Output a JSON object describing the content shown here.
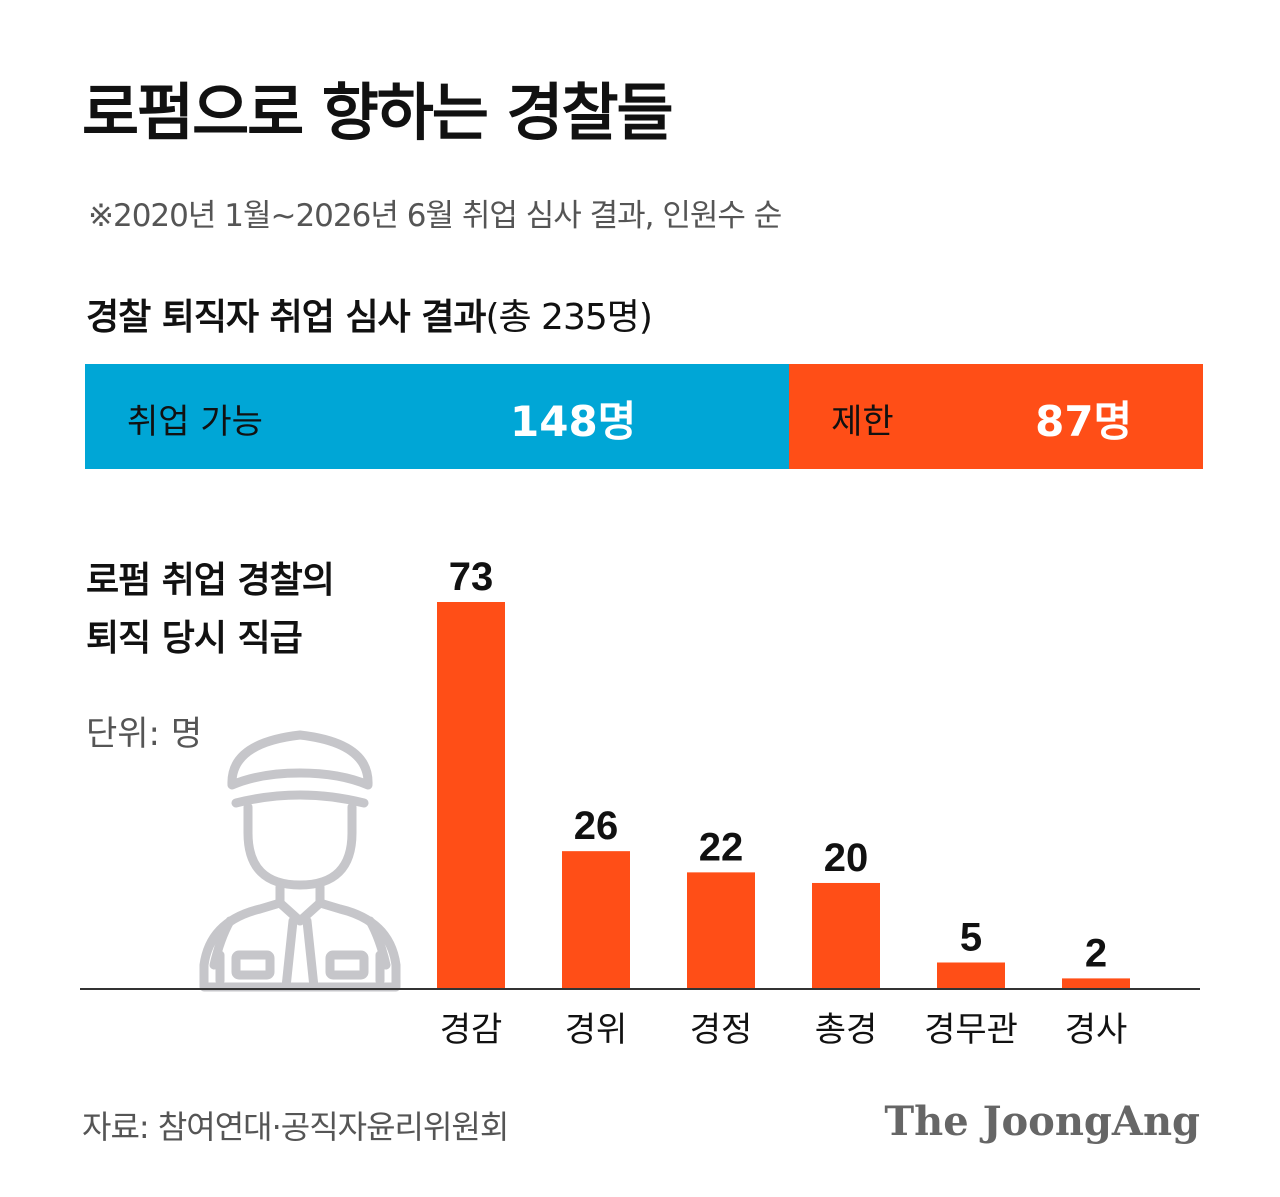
{
  "title": "로펌으로 향하는 경찰들",
  "note": "※2020년 1월~2026년 6월 취업 심사 결과, 인원수 순",
  "review": {
    "heading_bold": "경찰 퇴직자 취업 심사 결과",
    "heading_total": "(총 235명)",
    "segments": [
      {
        "label": "취업 가능",
        "value": 148,
        "value_text": "148명",
        "color": "#00A6D6"
      },
      {
        "label": "제한",
        "value": 87,
        "value_text": "87명",
        "color": "#FF4E17"
      }
    ]
  },
  "rank_section": {
    "heading_line1": "로펌 취업 경찰의",
    "heading_line2": "퇴직 당시 직급",
    "unit": "단위: 명"
  },
  "officer_icon": "police-officer-icon",
  "chart_data": {
    "type": "bar",
    "categories": [
      "경감",
      "경위",
      "경정",
      "총경",
      "경무관",
      "경사"
    ],
    "values": [
      73,
      26,
      22,
      20,
      5,
      2
    ],
    "title": "로펌 취업 경찰의 퇴직 당시 직급",
    "xlabel": "",
    "ylabel": "",
    "ylim": [
      0,
      73
    ],
    "grid": false,
    "bar_color": "#FF4E17",
    "axis_color": "#333333"
  },
  "source": "자료: 참여연대·공직자윤리위원회",
  "logo": "The JoongAng"
}
